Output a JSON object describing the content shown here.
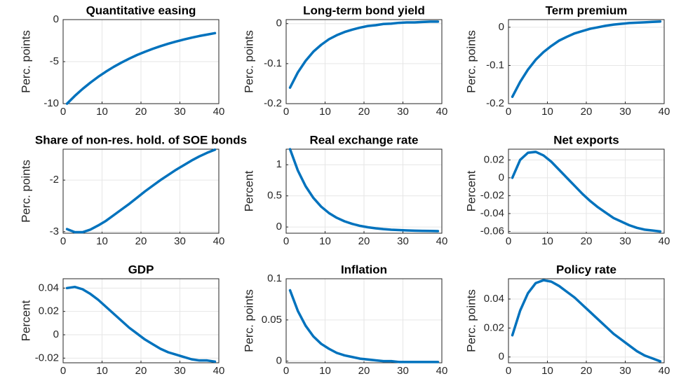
{
  "chart_data": [
    {
      "type": "line",
      "title": "Quantitative easing",
      "y_label": "Perc. points",
      "color": "#0072BD",
      "grid": true,
      "x": [
        1,
        3,
        5,
        7,
        9,
        11,
        13,
        15,
        17,
        19,
        21,
        23,
        25,
        27,
        29,
        31,
        33,
        35,
        37,
        39
      ],
      "values": [
        -10,
        -9.08,
        -8.25,
        -7.5,
        -6.81,
        -6.19,
        -5.62,
        -5.11,
        -4.64,
        -4.21,
        -3.83,
        -3.48,
        -3.16,
        -2.87,
        -2.61,
        -2.37,
        -2.15,
        -1.95,
        -1.78,
        -1.61
      ],
      "xlim": [
        0,
        40
      ],
      "xticks": [
        0,
        10,
        20,
        30,
        40
      ],
      "ylim": [
        -10,
        0
      ],
      "yticks": [
        -10,
        -5,
        0
      ]
    },
    {
      "type": "line",
      "title": "Long-term bond yield",
      "y_label": "Perc. points",
      "color": "#0072BD",
      "grid": true,
      "x": [
        1,
        3,
        5,
        7,
        9,
        11,
        13,
        15,
        17,
        19,
        21,
        23,
        25,
        27,
        29,
        31,
        33,
        35,
        37,
        39
      ],
      "values": [
        -0.16,
        -0.122,
        -0.093,
        -0.07,
        -0.053,
        -0.039,
        -0.029,
        -0.021,
        -0.015,
        -0.01,
        -0.006,
        -0.004,
        -0.001,
        0,
        0.002,
        0.003,
        0.003,
        0.004,
        0.005,
        0.005
      ],
      "xlim": [
        0,
        40
      ],
      "xticks": [
        0,
        10,
        20,
        30,
        40
      ],
      "ylim": [
        -0.2,
        0.01
      ],
      "yticks": [
        -0.2,
        -0.1,
        0
      ]
    },
    {
      "type": "line",
      "title": "Term premium",
      "y_label": "Perc. points",
      "color": "#0072BD",
      "grid": true,
      "x": [
        1,
        3,
        5,
        7,
        9,
        11,
        13,
        15,
        17,
        19,
        21,
        23,
        25,
        27,
        29,
        31,
        33,
        35,
        37,
        39
      ],
      "values": [
        -0.182,
        -0.143,
        -0.111,
        -0.085,
        -0.065,
        -0.049,
        -0.035,
        -0.025,
        -0.016,
        -0.01,
        -0.004,
        0,
        0.004,
        0.007,
        0.009,
        0.011,
        0.012,
        0.013,
        0.014,
        0.015
      ],
      "xlim": [
        0,
        40
      ],
      "xticks": [
        0,
        10,
        20,
        30,
        40
      ],
      "ylim": [
        -0.2,
        0.02
      ],
      "yticks": [
        -0.2,
        -0.1,
        0
      ]
    },
    {
      "type": "line",
      "title": "Share of non-res. hold. of SOE bonds",
      "y_label": "Perc. points",
      "color": "#0072BD",
      "grid": true,
      "x": [
        1,
        3,
        5,
        7,
        9,
        11,
        13,
        15,
        17,
        19,
        21,
        23,
        25,
        27,
        29,
        31,
        33,
        35,
        37,
        39
      ],
      "values": [
        -2.95,
        -3.01,
        -3.01,
        -2.96,
        -2.88,
        -2.79,
        -2.68,
        -2.57,
        -2.46,
        -2.34,
        -2.22,
        -2.11,
        -2.0,
        -1.9,
        -1.8,
        -1.71,
        -1.62,
        -1.54,
        -1.47,
        -1.41
      ],
      "xlim": [
        0,
        40
      ],
      "xticks": [
        0,
        10,
        20,
        30,
        40
      ],
      "ylim": [
        -3.03,
        -1.4
      ],
      "yticks": [
        -3,
        -2
      ]
    },
    {
      "type": "line",
      "title": "Real exchange rate",
      "y_label": "Percent",
      "color": "#0072BD",
      "grid": true,
      "x": [
        1,
        3,
        5,
        7,
        9,
        11,
        13,
        15,
        17,
        19,
        21,
        23,
        25,
        27,
        29,
        31,
        33,
        35,
        37,
        39
      ],
      "values": [
        1.25,
        0.908,
        0.655,
        0.467,
        0.327,
        0.224,
        0.148,
        0.091,
        0.05,
        0.018,
        -0.004,
        -0.021,
        -0.034,
        -0.044,
        -0.05,
        -0.055,
        -0.059,
        -0.062,
        -0.063,
        -0.066
      ],
      "xlim": [
        0,
        40
      ],
      "xticks": [
        0,
        10,
        20,
        30,
        40
      ],
      "ylim": [
        -0.1,
        1.25
      ],
      "yticks": [
        0,
        0.5,
        1
      ]
    },
    {
      "type": "line",
      "title": "Net exports",
      "y_label": "Percent",
      "color": "#0072BD",
      "grid": true,
      "x": [
        1,
        3,
        5,
        7,
        9,
        11,
        13,
        15,
        17,
        19,
        21,
        23,
        25,
        27,
        29,
        31,
        33,
        35,
        37,
        39
      ],
      "values": [
        0,
        0.02,
        0.028,
        0.029,
        0.025,
        0.018,
        0.009,
        0,
        -0.009,
        -0.018,
        -0.026,
        -0.033,
        -0.039,
        -0.045,
        -0.049,
        -0.053,
        -0.056,
        -0.058,
        -0.059,
        -0.06
      ],
      "xlim": [
        0,
        40
      ],
      "xticks": [
        0,
        10,
        20,
        30,
        40
      ],
      "ylim": [
        -0.062,
        0.032
      ],
      "yticks": [
        -0.06,
        -0.04,
        -0.02,
        0,
        0.02
      ]
    },
    {
      "type": "line",
      "title": "GDP",
      "y_label": "Percent",
      "color": "#0072BD",
      "grid": true,
      "x": [
        1,
        3,
        5,
        7,
        9,
        11,
        13,
        15,
        17,
        19,
        21,
        23,
        25,
        27,
        29,
        31,
        33,
        35,
        37,
        39
      ],
      "values": [
        0.04,
        0.041,
        0.039,
        0.035,
        0.03,
        0.024,
        0.018,
        0.012,
        0.006,
        0.001,
        -0.004,
        -0.008,
        -0.012,
        -0.015,
        -0.017,
        -0.019,
        -0.021,
        -0.022,
        -0.022,
        -0.023
      ],
      "xlim": [
        0,
        40
      ],
      "xticks": [
        0,
        10,
        20,
        30,
        40
      ],
      "ylim": [
        -0.024,
        0.048
      ],
      "yticks": [
        -0.02,
        0,
        0.02,
        0.04
      ]
    },
    {
      "type": "line",
      "title": "Inflation",
      "y_label": "Perc. points",
      "color": "#0072BD",
      "grid": true,
      "x": [
        1,
        3,
        5,
        7,
        9,
        11,
        13,
        15,
        17,
        19,
        21,
        23,
        25,
        27,
        29,
        31,
        33,
        35,
        37,
        39
      ],
      "values": [
        0.086,
        0.061,
        0.043,
        0.03,
        0.021,
        0.015,
        0.01,
        0.007,
        0.005,
        0.003,
        0.002,
        0.001,
        0,
        0,
        -0.001,
        -0.001,
        -0.001,
        -0.001,
        -0.001,
        -0.001
      ],
      "xlim": [
        0,
        40
      ],
      "xticks": [
        0,
        10,
        20,
        30,
        40
      ],
      "ylim": [
        -0.002,
        0.1
      ],
      "yticks": [
        0,
        0.05,
        0.1
      ]
    },
    {
      "type": "line",
      "title": "Policy rate",
      "y_label": "Perc. points",
      "color": "#0072BD",
      "grid": true,
      "x": [
        1,
        3,
        5,
        7,
        9,
        11,
        13,
        15,
        17,
        19,
        21,
        23,
        25,
        27,
        29,
        31,
        33,
        35,
        37,
        39
      ],
      "values": [
        0.015,
        0.032,
        0.044,
        0.051,
        0.053,
        0.052,
        0.049,
        0.045,
        0.041,
        0.036,
        0.031,
        0.026,
        0.021,
        0.016,
        0.012,
        0.008,
        0.004,
        0.001,
        -0.001,
        -0.003
      ],
      "xlim": [
        0,
        40
      ],
      "xticks": [
        0,
        10,
        20,
        30,
        40
      ],
      "ylim": [
        -0.004,
        0.054
      ],
      "yticks": [
        0,
        0.02,
        0.04
      ]
    }
  ]
}
